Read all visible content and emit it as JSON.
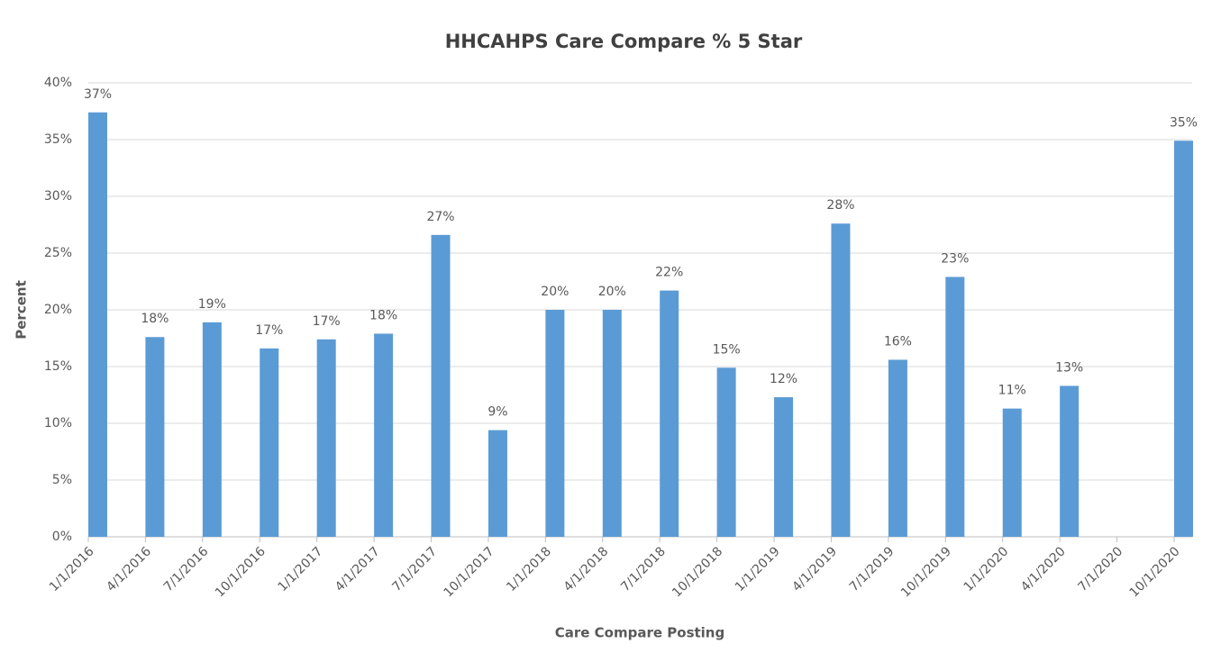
{
  "chart_data": {
    "type": "bar",
    "title": "HHCAHPS Care Compare % 5 Star",
    "x_label": "Care Compare Posting",
    "y_label": "Percent",
    "categories": [
      "1/1/2016",
      "4/1/2016",
      "7/1/2016",
      "10/1/2016",
      "1/1/2017",
      "4/1/2017",
      "7/1/2017",
      "10/1/2017",
      "1/1/2018",
      "4/1/2018",
      "7/1/2018",
      "10/1/2018",
      "1/1/2019",
      "4/1/2019",
      "7/1/2019",
      "10/1/2019",
      "1/1/2020",
      "4/1/2020",
      "7/1/2020",
      "10/1/2020"
    ],
    "values": [
      37.4,
      17.6,
      18.9,
      16.6,
      17.4,
      17.9,
      26.6,
      9.4,
      20.0,
      20.0,
      21.7,
      14.9,
      12.3,
      27.6,
      15.6,
      22.9,
      11.3,
      13.3,
      null,
      34.9
    ],
    "value_labels": [
      "37%",
      "18%",
      "19%",
      "17%",
      "17%",
      "18%",
      "27%",
      "9%",
      "20%",
      "20%",
      "22%",
      "15%",
      "12%",
      "28%",
      "16%",
      "23%",
      "11%",
      "13%",
      null,
      "35%"
    ],
    "color": "#5b9bd5",
    "ylim": [
      0,
      40
    ],
    "yticks": [
      {
        "value": 0,
        "label": "0%"
      },
      {
        "value": 5,
        "label": "5%"
      },
      {
        "value": 10,
        "label": "10%"
      },
      {
        "value": 15,
        "label": "15%"
      },
      {
        "value": 20,
        "label": "20%"
      },
      {
        "value": 25,
        "label": "25%"
      },
      {
        "value": 30,
        "label": "30%"
      },
      {
        "value": 35,
        "label": "35%"
      },
      {
        "value": 40,
        "label": "40%"
      }
    ],
    "grid": true
  }
}
